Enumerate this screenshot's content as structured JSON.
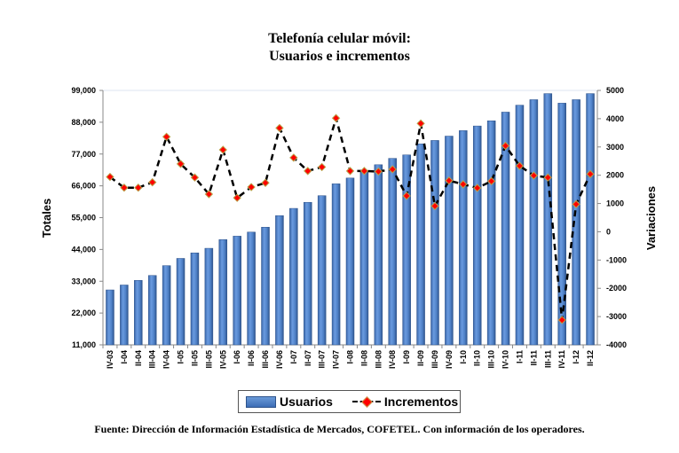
{
  "chart_data": {
    "type": "bar",
    "title": "Telefonía celular móvil:",
    "subtitle": "Usuarios e incrementos",
    "categories": [
      "IV-03",
      "I-04",
      "II-04",
      "III-04",
      "IV-04",
      "I-05",
      "II-05",
      "III-05",
      "IV-05",
      "I-06",
      "II-06",
      "III-06",
      "IV-06",
      "I-07",
      "II-07",
      "III-07",
      "IV-07",
      "I-08",
      "II-08",
      "III-08",
      "IV-08",
      "I-09",
      "II-09",
      "III-09",
      "IV-09",
      "I-10",
      "II-10",
      "III-10",
      "IV-10",
      "I-11",
      "II-11",
      "III-11",
      "IV-11",
      "I-12",
      "II-12"
    ],
    "series": [
      {
        "name": "Usuarios",
        "type": "bar",
        "axis": "left",
        "color": "#4f81c7",
        "values": [
          30000,
          31700,
          33300,
          35000,
          38400,
          40900,
          42800,
          44400,
          47400,
          48600,
          50000,
          51700,
          55700,
          58200,
          60300,
          62600,
          66700,
          68700,
          71100,
          73300,
          75500,
          76700,
          80500,
          81700,
          83200,
          85100,
          86700,
          88500,
          91500,
          93900,
          95800,
          97900,
          94600,
          95800,
          97900
        ]
      },
      {
        "name": "Incrementos",
        "type": "line",
        "axis": "right",
        "color": "#000000",
        "marker_color": "#ff0000",
        "values": [
          1940,
          1560,
          1560,
          1750,
          3360,
          2400,
          1920,
          1330,
          2900,
          1200,
          1580,
          1730,
          3670,
          2620,
          2150,
          2290,
          4020,
          2150,
          2150,
          2130,
          2210,
          1270,
          3830,
          910,
          1810,
          1680,
          1550,
          1790,
          3040,
          2330,
          1990,
          1920,
          -3120,
          975,
          2040
        ]
      }
    ],
    "ylabel": "Totales",
    "y2label": "Variaciones",
    "ylim": [
      11000,
      99000
    ],
    "y2lim": [
      -4000,
      5000
    ],
    "yticks": [
      "11,000",
      "22,000",
      "33,000",
      "44,000",
      "55,000",
      "66,000",
      "77,000",
      "88,000",
      "99,000"
    ],
    "y2ticks": [
      "-4000",
      "-3000",
      "-2000",
      "-1000",
      "0",
      "1000",
      "2000",
      "3000",
      "4000",
      "5000"
    ],
    "grid": false,
    "legend_position": "bottom-center"
  },
  "legend": {
    "usuarios": "Usuarios",
    "incrementos": "Incrementos"
  },
  "footer": "Fuente: Dirección de Información Estadística de Mercados, COFETEL. Con información de los operadores."
}
